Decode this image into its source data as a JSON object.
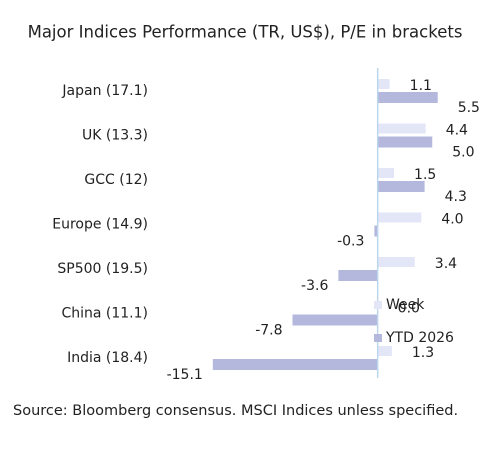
{
  "chart_data": {
    "type": "hbar",
    "title": "Major Indices Performance (TR, US$), P/E in brackets",
    "categories": [
      "Japan (17.1)",
      "UK (13.3)",
      "GCC (12)",
      "Europe (14.9)",
      "SP500 (19.5)",
      "China (11.1)",
      "India (18.4)"
    ],
    "series": [
      {
        "name": "Week",
        "color": "#e3e6f7",
        "values": [
          1.1,
          4.4,
          1.5,
          4.0,
          3.4,
          0.0,
          1.3
        ],
        "value_labels": [
          "1.1",
          "4.4",
          "1.5",
          "4.0",
          "3.4",
          "0.0",
          "1.3"
        ]
      },
      {
        "name": "YTD 2026",
        "color": "#b3b8dc",
        "values": [
          5.5,
          5.0,
          4.3,
          -0.3,
          -3.6,
          -7.8,
          -15.1
        ],
        "value_labels": [
          "5.5",
          "5.0",
          "4.3",
          "-0.3",
          "-3.6",
          "-7.8",
          "-15.1"
        ]
      }
    ],
    "xlim": [
      -16,
      8
    ],
    "legend": "lower right",
    "note": "Source: Bloomberg consensus. MSCI Indices unless specified."
  }
}
